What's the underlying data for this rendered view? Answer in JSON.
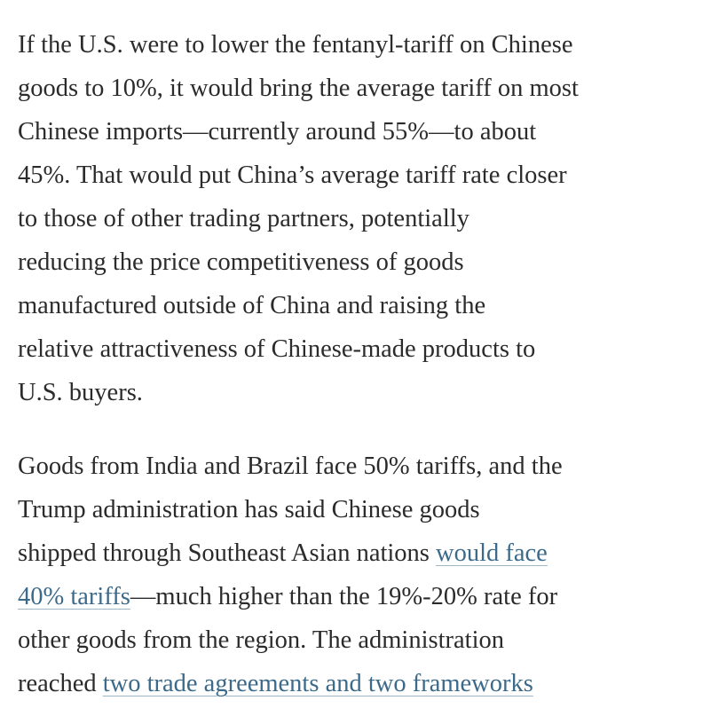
{
  "article": {
    "paragraphs": [
      {
        "lines": [
          [
            {
              "text": "If the U.S. were to lower the fentanyl-tariff on Chinese"
            }
          ],
          [
            {
              "text": "goods to 10%, it would bring the average tariff on most"
            }
          ],
          [
            {
              "text": "Chinese imports—currently around 55%—to about"
            }
          ],
          [
            {
              "text": "45%. That would put China’s average tariff rate closer"
            }
          ],
          [
            {
              "text": "to those of other trading partners, potentially"
            }
          ],
          [
            {
              "text": "reducing the price competitiveness of goods"
            }
          ],
          [
            {
              "text": "manufactured outside of China and raising the"
            }
          ],
          [
            {
              "text": "relative attractiveness of Chinese-made products to"
            }
          ],
          [
            {
              "text": "U.S. buyers."
            }
          ]
        ]
      },
      {
        "lines": [
          [
            {
              "text": "Goods from India and Brazil face 50% tariffs, and the"
            }
          ],
          [
            {
              "text": "Trump administration has said Chinese goods"
            }
          ],
          [
            {
              "text": "shipped through Southeast Asian nations "
            },
            {
              "text": "would face",
              "link": true
            }
          ],
          [
            {
              "text": "40% tariffs",
              "link": true
            },
            {
              "text": "—much higher than the 19%-20% rate for"
            }
          ],
          [
            {
              "text": "other goods from the region. The administration"
            }
          ],
          [
            {
              "text": "reached "
            },
            {
              "text": "two trade agreements and two frameworks",
              "link": true
            }
          ]
        ]
      }
    ]
  }
}
